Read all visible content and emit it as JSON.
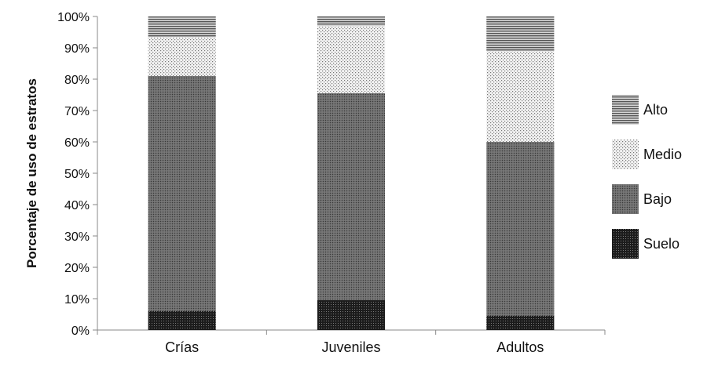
{
  "chart_data": {
    "type": "bar",
    "stacked": true,
    "percent": true,
    "categories": [
      "Crías",
      "Juveniles",
      "Adultos"
    ],
    "series": [
      {
        "name": "Suelo",
        "values": [
          6,
          9.5,
          4.5
        ],
        "pattern": "dark-dots"
      },
      {
        "name": "Bajo",
        "values": [
          75,
          66,
          55.5
        ],
        "pattern": "mid-dots"
      },
      {
        "name": "Medio",
        "values": [
          12.5,
          21.5,
          29
        ],
        "pattern": "light-dots"
      },
      {
        "name": "Alto",
        "values": [
          6.5,
          3,
          11
        ],
        "pattern": "horizontal-lines"
      }
    ],
    "title": "",
    "xlabel": "",
    "ylabel": "Porcentaje de uso de estratos",
    "ylim": [
      0,
      100
    ],
    "yticks": [
      "0%",
      "10%",
      "20%",
      "30%",
      "40%",
      "50%",
      "60%",
      "70%",
      "80%",
      "90%",
      "100%"
    ],
    "grid": false,
    "legend_position": "right",
    "legend_order": [
      "Alto",
      "Medio",
      "Bajo",
      "Suelo"
    ]
  }
}
